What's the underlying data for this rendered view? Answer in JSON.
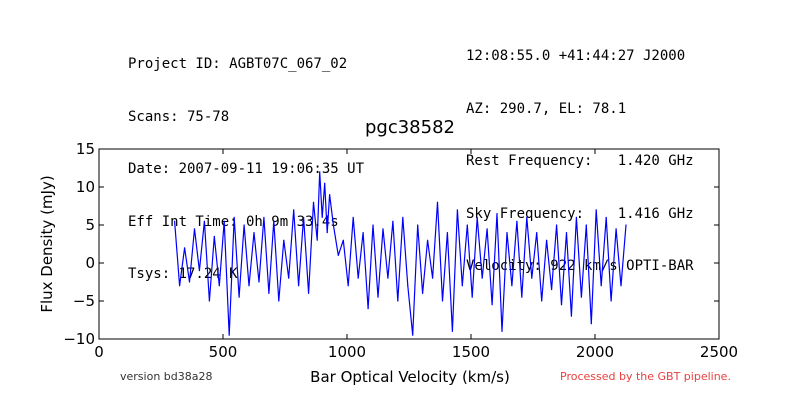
{
  "header_left": [
    "Project ID: AGBT07C_067_02",
    "Scans: 75-78",
    "Date: 2007-09-11 19:06:35 UT",
    "Eff Int Time: 0h 9m 33.4s",
    "Tsys: 17.24 K"
  ],
  "header_right": [
    "12:08:55.0 +41:44:27 J2000",
    "AZ: 290.7, EL: 78.1",
    "Rest Frequency:   1.420 GHz",
    "Sky Frequency:    1.416 GHz",
    "Velocity: 922 km/s OPTI-BAR"
  ],
  "footer": {
    "version": "version bd38a28",
    "processed": "Processed by the GBT pipeline."
  },
  "colors": {
    "series": "#0000ff",
    "processed_text": "#e8403f"
  },
  "chart_data": {
    "type": "line",
    "title": "pgc38582",
    "xlabel": "Bar Optical Velocity (km/s)",
    "ylabel": "Flux Density (mJy)",
    "xlim": [
      0,
      2500
    ],
    "ylim": [
      -10,
      15
    ],
    "xticks": [
      0,
      500,
      1000,
      1500,
      2000,
      2500
    ],
    "yticks": [
      -10,
      -5,
      0,
      5,
      10,
      15
    ],
    "grid": false,
    "series": [
      {
        "color": "#0000ff",
        "x": [
          305,
          325,
          345,
          365,
          385,
          405,
          425,
          445,
          465,
          485,
          505,
          525,
          545,
          565,
          585,
          605,
          625,
          645,
          665,
          685,
          705,
          725,
          745,
          765,
          785,
          805,
          825,
          845,
          865,
          880,
          890,
          900,
          910,
          920,
          930,
          945,
          965,
          985,
          1005,
          1025,
          1045,
          1065,
          1085,
          1105,
          1125,
          1145,
          1165,
          1185,
          1205,
          1225,
          1245,
          1265,
          1285,
          1305,
          1325,
          1345,
          1365,
          1385,
          1405,
          1425,
          1445,
          1465,
          1485,
          1505,
          1525,
          1545,
          1565,
          1585,
          1605,
          1625,
          1645,
          1665,
          1685,
          1705,
          1725,
          1745,
          1765,
          1785,
          1805,
          1825,
          1845,
          1865,
          1885,
          1905,
          1925,
          1945,
          1965,
          1985,
          2005,
          2025,
          2045,
          2065,
          2085,
          2105,
          2125
        ],
        "y": [
          5.5,
          -3,
          2,
          -2.5,
          4.5,
          -1,
          5.5,
          -5,
          3.5,
          -3,
          5.5,
          -9.5,
          6,
          -4.5,
          5,
          -3,
          4,
          -2.5,
          6,
          -4,
          5.5,
          -5,
          3,
          -2,
          7,
          -3,
          6,
          -4,
          8,
          3,
          12,
          6,
          10.5,
          4,
          9,
          5,
          1,
          3,
          -3,
          6,
          -2,
          4,
          -6,
          5,
          -4.5,
          4.5,
          -2,
          5.5,
          -5,
          6,
          -3,
          -9.5,
          5,
          -4,
          3,
          -2,
          8,
          -5,
          4,
          -9,
          7,
          -3,
          5,
          -4.5,
          6,
          -2,
          4.5,
          -5.5,
          6.5,
          -9,
          4,
          -3,
          5.5,
          -4.5,
          6,
          -2,
          4,
          -5,
          3,
          -3.5,
          5,
          -5.5,
          4,
          -7,
          6,
          -4.5,
          5,
          -8,
          7,
          -3,
          6,
          -5,
          4.5,
          -3,
          5
        ]
      }
    ]
  }
}
